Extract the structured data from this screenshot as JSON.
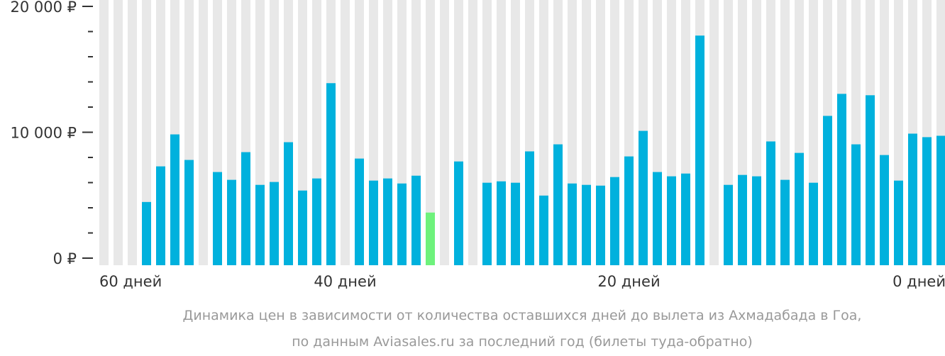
{
  "chart_data": {
    "type": "bar",
    "title": "",
    "caption_lines": [
      "Динамика цен в зависимости от количества оставшихся дней до вылета из Ахмадабада в Гоа,",
      "по данным Aviasales.ru за последний год (билеты туда-обратно)"
    ],
    "xlabel": "",
    "ylabel": "",
    "ylim": [
      0,
      20000
    ],
    "y_ticks": [
      {
        "value": 0,
        "label": "0 ₽"
      },
      {
        "value": 10000,
        "label": "10 000 ₽"
      },
      {
        "value": 20000,
        "label": "20 000 ₽"
      }
    ],
    "y_minor_step": 2000,
    "x_tick_labels": [
      {
        "index": 0,
        "label": "60 дней"
      },
      {
        "index": 17,
        "label": "40 дней"
      },
      {
        "index": 37,
        "label": "20 дней"
      },
      {
        "index": 59,
        "label": "0 дней"
      }
    ],
    "values": [
      null,
      null,
      null,
      4460,
      7290,
      9830,
      7800,
      null,
      6840,
      6220,
      8420,
      5820,
      6050,
      9210,
      5370,
      6330,
      13900,
      null,
      7910,
      6160,
      6330,
      5930,
      6550,
      3620,
      null,
      7680,
      null,
      5990,
      6100,
      5990,
      8480,
      4970,
      9040,
      5930,
      5820,
      5760,
      6440,
      8080,
      10110,
      6840,
      6500,
      6720,
      17680,
      null,
      5820,
      6610,
      6500,
      9270,
      6220,
      8360,
      5990,
      11300,
      13050,
      9040,
      12940,
      8190,
      6160,
      9890,
      9610,
      9720
    ],
    "highlight_index": 23,
    "colors": {
      "bar": "#00b1dd",
      "highlight": "#6ef27c",
      "background_bar": "#e8e8e8",
      "axis": "#333333"
    }
  }
}
